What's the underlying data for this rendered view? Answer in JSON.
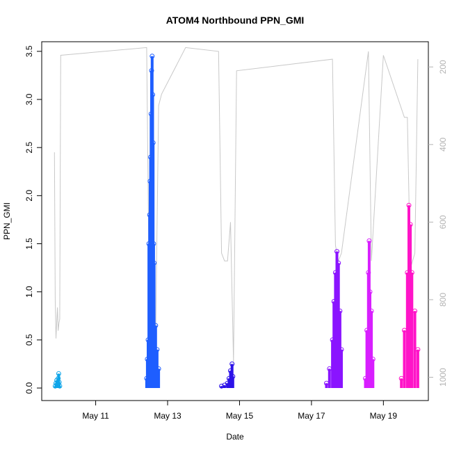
{
  "chart_data": {
    "type": "scatter",
    "title": "ATOM4 Northbound PPN_GMI",
    "xlabel": "Date",
    "ylabel": "PPN_GMI",
    "x_axis": {
      "ticks": [
        {
          "value": "2024-05-11",
          "label": "May 11"
        },
        {
          "value": "2024-05-13",
          "label": "May 13"
        },
        {
          "value": "2024-05-15",
          "label": "May 15"
        },
        {
          "value": "2024-05-17",
          "label": "May 17"
        },
        {
          "value": "2024-05-19",
          "label": "May 19"
        }
      ],
      "range": [
        "2024-05-09 12:00",
        "2024-05-20 06:00"
      ]
    },
    "y_axis": {
      "ticks": [
        0.0,
        0.5,
        1.0,
        1.5,
        2.0,
        2.5,
        3.0,
        3.5
      ],
      "tick_labels": [
        "0.0",
        "0.5",
        "1.0",
        "1.5",
        "2.0",
        "2.5",
        "3.0",
        "3.5"
      ],
      "range": [
        -0.13,
        3.6
      ]
    },
    "y2_axis": {
      "ticks": [
        200,
        400,
        600,
        800,
        1000
      ],
      "tick_labels": [
        "200",
        "400",
        "600",
        "800",
        "1000"
      ],
      "range": [
        1060,
        135
      ],
      "reversed": true,
      "color": "#b3b3b3"
    },
    "grid": false,
    "series": [
      {
        "color": "#0ea5e9",
        "points": [
          [
            "2024-05-09 21:00",
            0.02
          ],
          [
            "2024-05-09 21:30",
            0.05
          ],
          [
            "2024-05-09 22:00",
            0.08
          ],
          [
            "2024-05-09 22:30",
            0.04
          ],
          [
            "2024-05-09 23:00",
            0.1
          ],
          [
            "2024-05-09 23:20",
            0.15
          ],
          [
            "2024-05-09 23:40",
            0.06
          ],
          [
            "2024-05-10 00:00",
            0.02
          ]
        ]
      },
      {
        "color": "#1e5eff",
        "points": [
          [
            "2024-05-12 10:00",
            0.1
          ],
          [
            "2024-05-12 10:30",
            0.3
          ],
          [
            "2024-05-12 11:00",
            0.5
          ],
          [
            "2024-05-12 11:30",
            1.5
          ],
          [
            "2024-05-12 12:00",
            1.8
          ],
          [
            "2024-05-12 12:20",
            2.15
          ],
          [
            "2024-05-12 12:40",
            2.4
          ],
          [
            "2024-05-12 13:00",
            2.85
          ],
          [
            "2024-05-12 13:20",
            3.3
          ],
          [
            "2024-05-12 13:40",
            3.45
          ],
          [
            "2024-05-12 14:00",
            3.05
          ],
          [
            "2024-05-12 14:20",
            2.55
          ],
          [
            "2024-05-12 14:40",
            1.5
          ],
          [
            "2024-05-12 15:00",
            1.3
          ],
          [
            "2024-05-12 16:00",
            0.65
          ],
          [
            "2024-05-12 17:00",
            0.4
          ],
          [
            "2024-05-12 18:00",
            0.2
          ]
        ]
      },
      {
        "color": "#2d13e8",
        "points": [
          [
            "2024-05-14 12:00",
            0.02
          ],
          [
            "2024-05-14 14:00",
            0.03
          ],
          [
            "2024-05-14 16:00",
            0.05
          ],
          [
            "2024-05-14 17:00",
            0.1
          ],
          [
            "2024-05-14 18:00",
            0.18
          ],
          [
            "2024-05-14 19:00",
            0.25
          ],
          [
            "2024-05-14 19:30",
            0.12
          ]
        ]
      },
      {
        "color": "#8a14ff",
        "points": [
          [
            "2024-05-17 10:00",
            0.05
          ],
          [
            "2024-05-17 12:00",
            0.2
          ],
          [
            "2024-05-17 14:00",
            0.5
          ],
          [
            "2024-05-17 15:00",
            0.9
          ],
          [
            "2024-05-17 16:00",
            1.2
          ],
          [
            "2024-05-17 17:00",
            1.42
          ],
          [
            "2024-05-17 18:00",
            1.3
          ],
          [
            "2024-05-17 19:00",
            0.8
          ],
          [
            "2024-05-17 20:00",
            0.4
          ]
        ]
      },
      {
        "color": "#d81fff",
        "points": [
          [
            "2024-05-18 12:00",
            0.1
          ],
          [
            "2024-05-18 13:00",
            0.6
          ],
          [
            "2024-05-18 14:00",
            1.2
          ],
          [
            "2024-05-18 14:30",
            1.53
          ],
          [
            "2024-05-18 15:00",
            1.0
          ],
          [
            "2024-05-18 16:00",
            0.8
          ],
          [
            "2024-05-18 17:00",
            0.3
          ]
        ]
      },
      {
        "color": "#ff14c8",
        "points": [
          [
            "2024-05-19 12:00",
            0.1
          ],
          [
            "2024-05-19 14:00",
            0.6
          ],
          [
            "2024-05-19 16:00",
            1.2
          ],
          [
            "2024-05-19 17:00",
            1.9
          ],
          [
            "2024-05-19 18:00",
            1.7
          ],
          [
            "2024-05-19 19:00",
            1.2
          ],
          [
            "2024-05-19 21:00",
            0.8
          ],
          [
            "2024-05-19 23:00",
            0.4
          ]
        ]
      }
    ],
    "secondary_series": {
      "color": "#c8c8c8",
      "type": "line",
      "points": [
        [
          "2024-05-09 20:30",
          420
        ],
        [
          "2024-05-09 21:00",
          800
        ],
        [
          "2024-05-09 21:30",
          900
        ],
        [
          "2024-05-09 22:30",
          820
        ],
        [
          "2024-05-09 23:00",
          880
        ],
        [
          "2024-05-09 23:30",
          860
        ],
        [
          "2024-05-10 00:00",
          850
        ],
        [
          "2024-05-10 00:20",
          500
        ],
        [
          "2024-05-10 00:40",
          170
        ],
        [
          "2024-05-12 10:00",
          150
        ],
        [
          "2024-05-12 12:00",
          900
        ],
        [
          "2024-05-12 16:00",
          900
        ],
        [
          "2024-05-12 18:00",
          300
        ],
        [
          "2024-05-12 20:00",
          270
        ],
        [
          "2024-05-13 12:00",
          150
        ],
        [
          "2024-05-14 10:00",
          160
        ],
        [
          "2024-05-14 12:00",
          680
        ],
        [
          "2024-05-14 14:00",
          700
        ],
        [
          "2024-05-14 16:00",
          700
        ],
        [
          "2024-05-14 18:00",
          600
        ],
        [
          "2024-05-14 20:00",
          960
        ],
        [
          "2024-05-14 22:00",
          210
        ],
        [
          "2024-05-17 14:00",
          180
        ],
        [
          "2024-05-17 16:00",
          660
        ],
        [
          "2024-05-17 18:00",
          700
        ],
        [
          "2024-05-17 20:00",
          680
        ],
        [
          "2024-05-18 14:00",
          160
        ],
        [
          "2024-05-18 16:00",
          700
        ],
        [
          "2024-05-19 00:00",
          170
        ],
        [
          "2024-05-19 14:00",
          330
        ],
        [
          "2024-05-19 16:00",
          330
        ],
        [
          "2024-05-19 18:00",
          720
        ],
        [
          "2024-05-19 21:00",
          680
        ],
        [
          "2024-05-19 23:00",
          180
        ]
      ]
    }
  }
}
